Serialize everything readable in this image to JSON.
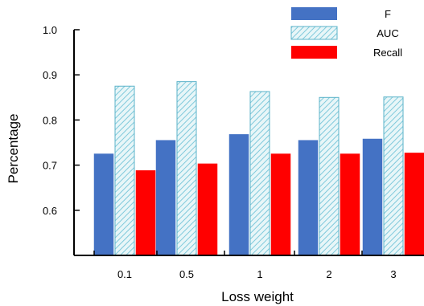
{
  "chart_data": {
    "type": "bar",
    "title": "",
    "xlabel": "Loss weight",
    "ylabel": "Percentage",
    "categories": [
      "0.1",
      "0.5",
      "1",
      "2",
      "3"
    ],
    "ylim": [
      0.5,
      1.0
    ],
    "yticks": [
      "0.6",
      "0.7",
      "0.8",
      "0.9",
      "1.0"
    ],
    "grid": false,
    "legend_position": "top-right",
    "series": [
      {
        "name": "F",
        "values": [
          0.725,
          0.755,
          0.768,
          0.755,
          0.758
        ],
        "color": "#4472C4",
        "pattern": "solid"
      },
      {
        "name": "AUC",
        "values": [
          0.875,
          0.885,
          0.863,
          0.85,
          0.851
        ],
        "color": "#9DD9E8",
        "pattern": "hatched"
      },
      {
        "name": "Recall",
        "values": [
          0.688,
          0.703,
          0.725,
          0.725,
          0.727
        ],
        "color": "#FF0000",
        "pattern": "solid"
      }
    ]
  }
}
